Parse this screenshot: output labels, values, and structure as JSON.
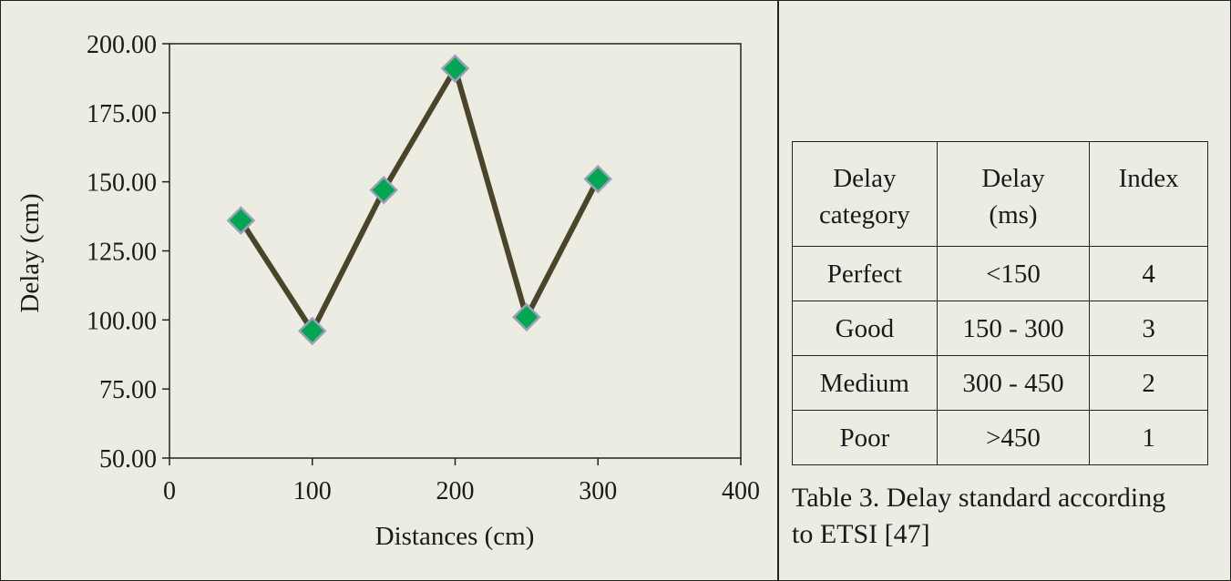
{
  "chart_data": {
    "type": "line",
    "xlabel": "Distances (cm)",
    "ylabel": "Delay (cm)",
    "xlim": [
      0,
      400
    ],
    "ylim": [
      50,
      200
    ],
    "x_ticks": [
      "0",
      "100",
      "200",
      "300",
      "400"
    ],
    "y_ticks": [
      "200.00",
      "175.00",
      "150.00",
      "125.00",
      "100.00",
      "75.00",
      "50.00"
    ],
    "grid": false,
    "series": [
      {
        "x": [
          50,
          100,
          150,
          200,
          250,
          300
        ],
        "y": [
          136,
          96,
          147,
          191,
          101,
          151
        ],
        "line_color": "#4a4529",
        "marker": "diamond",
        "marker_color": "#00a651",
        "marker_edge_color": "#9aa0b8"
      }
    ]
  },
  "table": {
    "headers": [
      [
        "Delay",
        "category"
      ],
      [
        "Delay",
        "(ms)"
      ],
      [
        "Index"
      ]
    ],
    "rows": [
      [
        "Perfect",
        "<150",
        "4"
      ],
      [
        "Good",
        "150 - 300",
        "3"
      ],
      [
        "Medium",
        "300 - 450",
        "2"
      ],
      [
        "Poor",
        ">450",
        "1"
      ]
    ]
  },
  "caption": {
    "line1": "Table 3. Delay standard according",
    "line2": "to ETSI [47]"
  }
}
